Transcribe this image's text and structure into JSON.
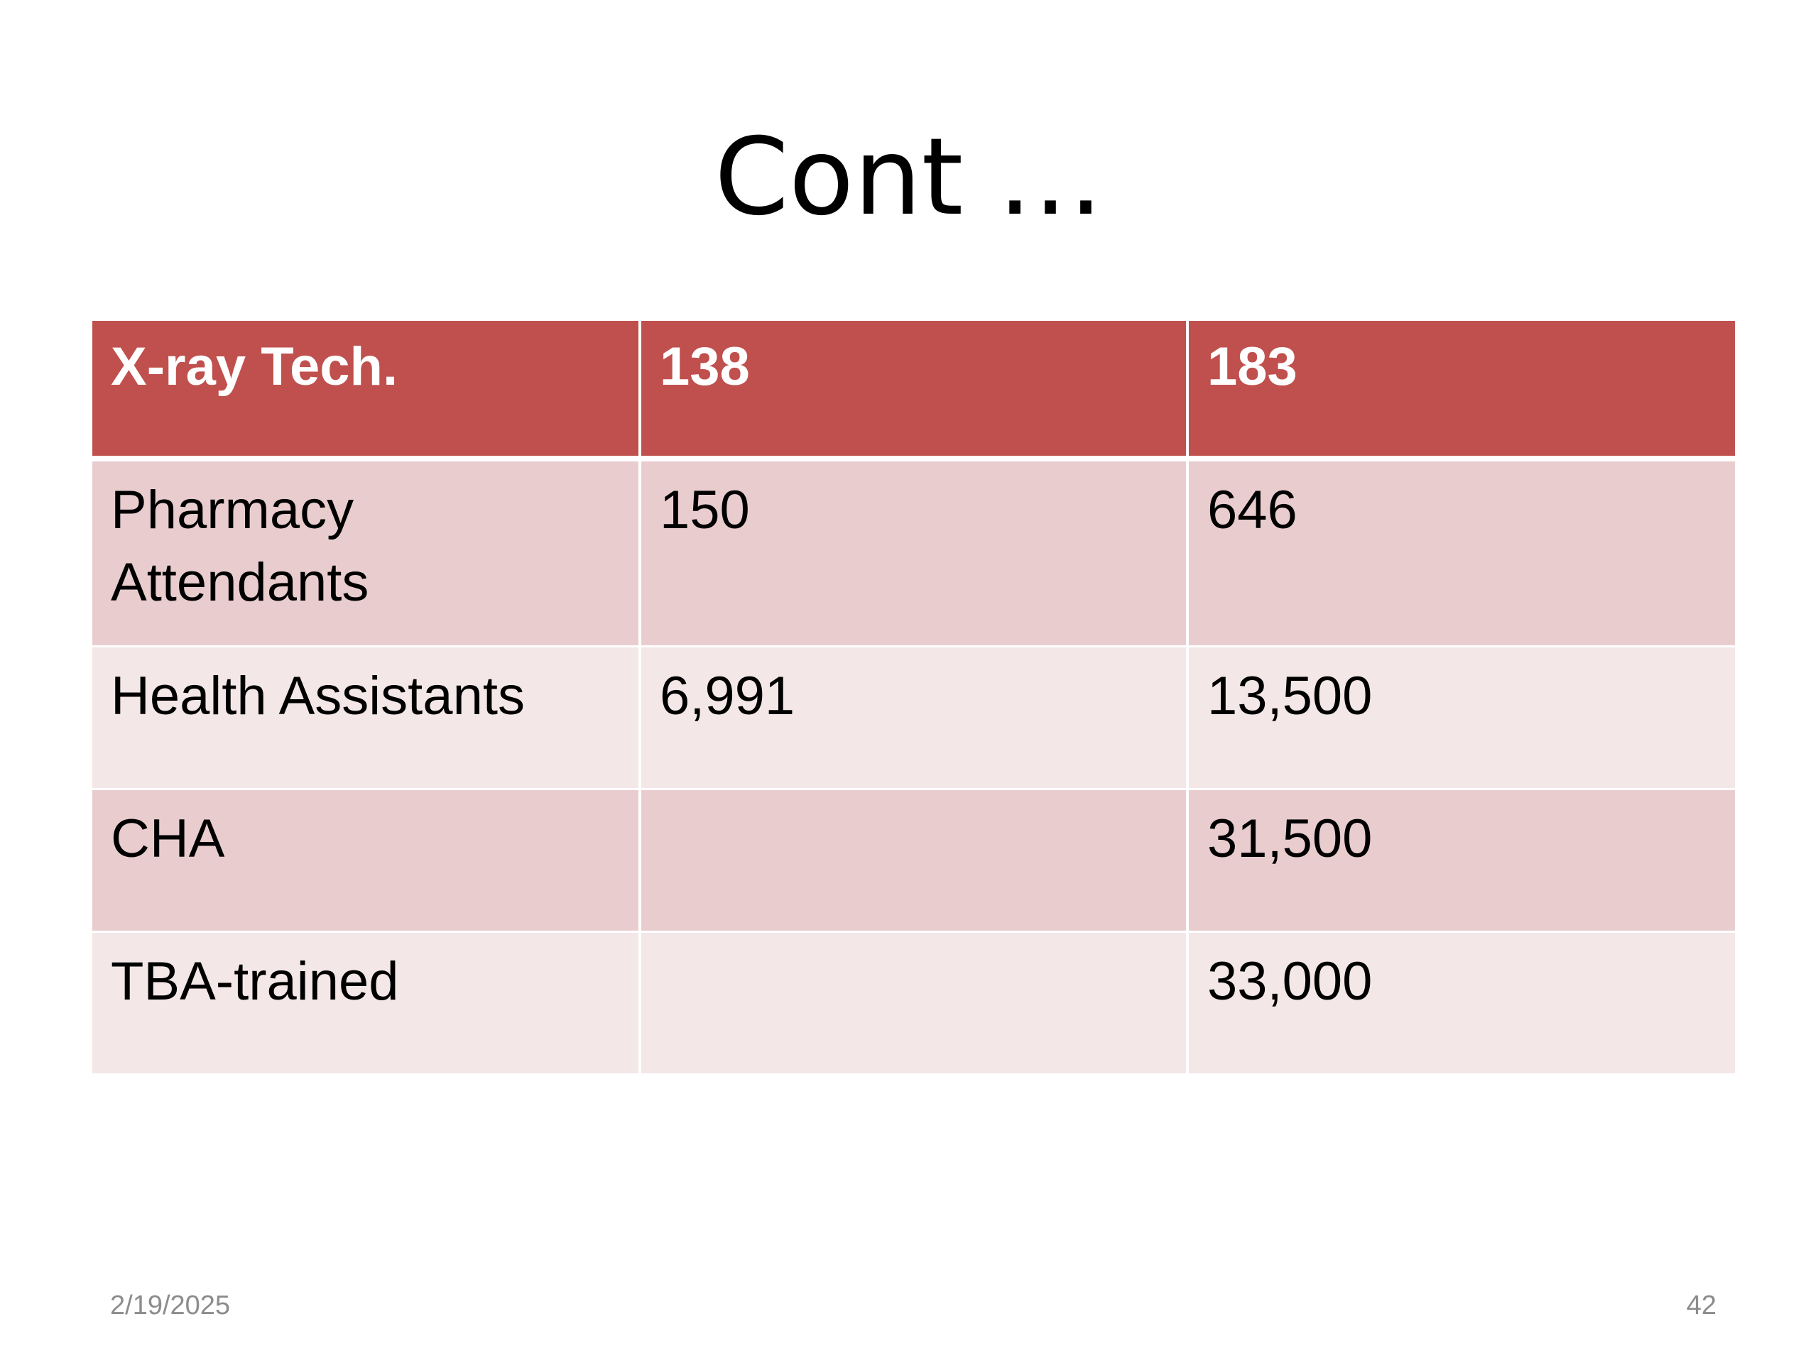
{
  "slide": {
    "title": "Cont …",
    "footer": {
      "date": "2/19/2025",
      "page_number": "42"
    }
  },
  "table": {
    "header": [
      "X-ray Tech.",
      "138",
      "183"
    ],
    "rows": [
      [
        "Pharmacy Attendants",
        "150",
        "646"
      ],
      [
        "Health Assistants",
        "6,991",
        "13,500"
      ],
      [
        "CHA",
        "",
        "31,500"
      ],
      [
        "TBA-trained",
        "",
        "33,000"
      ]
    ]
  },
  "colors": {
    "header_bg": "#c0504d",
    "row_dark_bg": "#e9cdce",
    "row_light_bg": "#f4e7e7",
    "header_text": "#ffffff",
    "footer_text": "#8c8c8c"
  }
}
